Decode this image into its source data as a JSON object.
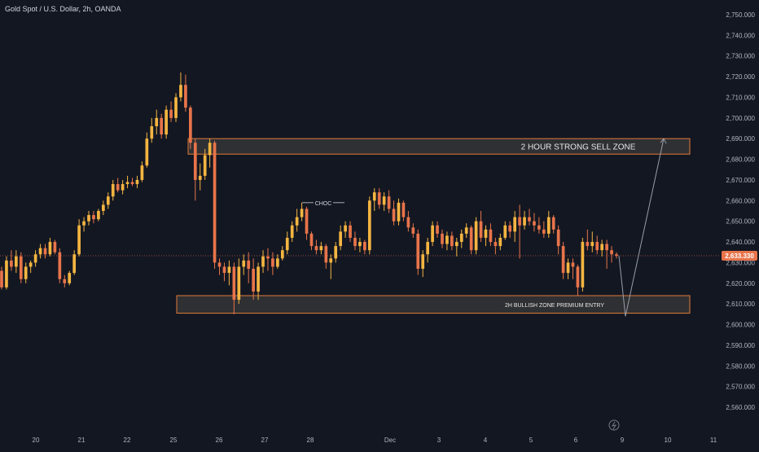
{
  "header": {
    "title": "Gold Spot / U.S. Dollar, 2h, OANDA"
  },
  "colors": {
    "background": "#131722",
    "up": "#f4b541",
    "down": "#e8744a",
    "zone_border": "#e07b39",
    "zone_fill": "#3a3a3a",
    "price_line": "#e8744a",
    "price_badge": "#e8744a",
    "projection": "#9a9ea8",
    "axis_text": "#b2b5be"
  },
  "chart_data": {
    "type": "candlestick",
    "symbol": "Gold Spot / U.S. Dollar",
    "interval": "2h",
    "source": "OANDA",
    "ylim": [
      2555,
      2755
    ],
    "y_ticks": [
      "2,560.000",
      "2,570.000",
      "2,580.000",
      "2,590.000",
      "2,600.000",
      "2,610.000",
      "2,620.000",
      "2,630.000",
      "2,640.000",
      "2,650.000",
      "2,660.000",
      "2,670.000",
      "2,680.000",
      "2,690.000",
      "2,700.000",
      "2,710.000",
      "2,720.000",
      "2,730.000",
      "2,740.000",
      "2,750.000"
    ],
    "x_ticks": [
      "20",
      "21",
      "22",
      "25",
      "26",
      "27",
      "28",
      "Dec",
      "3",
      "4",
      "5",
      "6",
      "9",
      "10",
      "11"
    ],
    "current_price": 2633.33,
    "current_price_label": "2,633.330",
    "candles": [
      [
        2626,
        2628,
        2617,
        2618
      ],
      [
        2618,
        2633,
        2617,
        2631
      ],
      [
        2631,
        2636,
        2626,
        2628
      ],
      [
        2628,
        2636,
        2625,
        2633
      ],
      [
        2633,
        2635,
        2620,
        2622
      ],
      [
        2622,
        2630,
        2620,
        2628
      ],
      [
        2628,
        2631,
        2625,
        2630
      ],
      [
        2630,
        2636,
        2628,
        2634
      ],
      [
        2634,
        2639,
        2632,
        2637
      ],
      [
        2637,
        2639,
        2632,
        2634
      ],
      [
        2634,
        2642,
        2633,
        2640
      ],
      [
        2640,
        2641,
        2634,
        2635
      ],
      [
        2635,
        2637,
        2620,
        2622
      ],
      [
        2622,
        2624,
        2618,
        2620
      ],
      [
        2620,
        2626,
        2619,
        2625
      ],
      [
        2625,
        2636,
        2624,
        2634
      ],
      [
        2634,
        2651,
        2633,
        2648
      ],
      [
        2648,
        2652,
        2645,
        2650
      ],
      [
        2650,
        2655,
        2648,
        2653
      ],
      [
        2653,
        2655,
        2649,
        2651
      ],
      [
        2651,
        2656,
        2650,
        2655
      ],
      [
        2655,
        2660,
        2653,
        2658
      ],
      [
        2658,
        2664,
        2656,
        2662
      ],
      [
        2662,
        2670,
        2660,
        2668
      ],
      [
        2668,
        2671,
        2664,
        2665
      ],
      [
        2665,
        2670,
        2663,
        2668
      ],
      [
        2668,
        2672,
        2666,
        2669
      ],
      [
        2669,
        2671,
        2667,
        2668
      ],
      [
        2668,
        2672,
        2666,
        2670
      ],
      [
        2670,
        2679,
        2669,
        2677
      ],
      [
        2677,
        2693,
        2676,
        2690
      ],
      [
        2690,
        2700,
        2688,
        2696
      ],
      [
        2696,
        2704,
        2692,
        2700
      ],
      [
        2700,
        2702,
        2690,
        2692
      ],
      [
        2692,
        2706,
        2690,
        2704
      ],
      [
        2704,
        2708,
        2698,
        2700
      ],
      [
        2700,
        2712,
        2698,
        2710
      ],
      [
        2710,
        2722,
        2708,
        2716
      ],
      [
        2716,
        2721,
        2703,
        2705
      ],
      [
        2705,
        2706,
        2685,
        2688
      ],
      [
        2688,
        2690,
        2660,
        2670
      ],
      [
        2670,
        2678,
        2665,
        2672
      ],
      [
        2672,
        2685,
        2670,
        2682
      ],
      [
        2682,
        2690,
        2676,
        2688
      ],
      [
        2688,
        2689,
        2627,
        2630
      ],
      [
        2630,
        2632,
        2624,
        2628
      ],
      [
        2628,
        2630,
        2621,
        2625
      ],
      [
        2625,
        2631,
        2619,
        2628
      ],
      [
        2628,
        2630,
        2605,
        2612
      ],
      [
        2612,
        2632,
        2610,
        2628
      ],
      [
        2628,
        2634,
        2624,
        2631
      ],
      [
        2631,
        2635,
        2620,
        2627
      ],
      [
        2627,
        2632,
        2612,
        2616
      ],
      [
        2616,
        2630,
        2612,
        2628
      ],
      [
        2628,
        2636,
        2625,
        2633
      ],
      [
        2633,
        2637,
        2626,
        2632
      ],
      [
        2632,
        2635,
        2624,
        2628
      ],
      [
        2628,
        2634,
        2627,
        2632
      ],
      [
        2632,
        2638,
        2631,
        2636
      ],
      [
        2636,
        2645,
        2634,
        2642
      ],
      [
        2642,
        2650,
        2640,
        2648
      ],
      [
        2648,
        2656,
        2645,
        2652
      ],
      [
        2652,
        2659,
        2650,
        2656
      ],
      [
        2656,
        2657,
        2641,
        2644
      ],
      [
        2644,
        2645,
        2636,
        2638
      ],
      [
        2638,
        2641,
        2634,
        2636
      ],
      [
        2636,
        2640,
        2634,
        2638
      ],
      [
        2638,
        2639,
        2627,
        2630
      ],
      [
        2630,
        2634,
        2622,
        2632
      ],
      [
        2632,
        2640,
        2630,
        2638
      ],
      [
        2638,
        2648,
        2636,
        2645
      ],
      [
        2645,
        2650,
        2642,
        2648
      ],
      [
        2648,
        2650,
        2640,
        2642
      ],
      [
        2642,
        2645,
        2636,
        2638
      ],
      [
        2638,
        2642,
        2635,
        2640
      ],
      [
        2640,
        2641,
        2634,
        2636
      ],
      [
        2636,
        2662,
        2634,
        2660
      ],
      [
        2660,
        2666,
        2655,
        2664
      ],
      [
        2664,
        2666,
        2656,
        2658
      ],
      [
        2658,
        2664,
        2655,
        2662
      ],
      [
        2662,
        2665,
        2654,
        2656
      ],
      [
        2656,
        2660,
        2648,
        2650
      ],
      [
        2650,
        2661,
        2648,
        2659
      ],
      [
        2659,
        2660,
        2650,
        2652
      ],
      [
        2652,
        2655,
        2645,
        2647
      ],
      [
        2647,
        2649,
        2642,
        2644
      ],
      [
        2644,
        2646,
        2624,
        2627
      ],
      [
        2627,
        2636,
        2623,
        2634
      ],
      [
        2634,
        2642,
        2630,
        2640
      ],
      [
        2640,
        2650,
        2638,
        2648
      ],
      [
        2648,
        2650,
        2642,
        2644
      ],
      [
        2644,
        2646,
        2637,
        2639
      ],
      [
        2639,
        2645,
        2636,
        2643
      ],
      [
        2643,
        2645,
        2636,
        2638
      ],
      [
        2638,
        2642,
        2633,
        2640
      ],
      [
        2640,
        2646,
        2637,
        2644
      ],
      [
        2644,
        2649,
        2642,
        2647
      ],
      [
        2647,
        2648,
        2634,
        2636
      ],
      [
        2636,
        2652,
        2634,
        2650
      ],
      [
        2650,
        2655,
        2640,
        2642
      ],
      [
        2642,
        2648,
        2638,
        2646
      ],
      [
        2646,
        2649,
        2638,
        2640
      ],
      [
        2640,
        2642,
        2634,
        2638
      ],
      [
        2638,
        2644,
        2636,
        2642
      ],
      [
        2642,
        2650,
        2641,
        2648
      ],
      [
        2648,
        2650,
        2642,
        2645
      ],
      [
        2645,
        2655,
        2640,
        2652
      ],
      [
        2652,
        2658,
        2632,
        2648
      ],
      [
        2648,
        2655,
        2646,
        2652
      ],
      [
        2652,
        2656,
        2648,
        2650
      ],
      [
        2650,
        2654,
        2645,
        2648
      ],
      [
        2648,
        2652,
        2644,
        2646
      ],
      [
        2646,
        2650,
        2642,
        2644
      ],
      [
        2644,
        2655,
        2642,
        2652
      ],
      [
        2652,
        2653,
        2644,
        2646
      ],
      [
        2646,
        2648,
        2634,
        2638
      ],
      [
        2638,
        2640,
        2622,
        2625
      ],
      [
        2625,
        2632,
        2622,
        2630
      ],
      [
        2630,
        2632,
        2622,
        2628
      ],
      [
        2628,
        2629,
        2614,
        2618
      ],
      [
        2618,
        2642,
        2616,
        2640
      ],
      [
        2640,
        2646,
        2636,
        2638
      ],
      [
        2638,
        2645,
        2635,
        2640
      ],
      [
        2640,
        2643,
        2634,
        2636
      ],
      [
        2636,
        2641,
        2633,
        2639
      ],
      [
        2639,
        2641,
        2627,
        2636
      ],
      [
        2636,
        2638,
        2630,
        2634
      ],
      [
        2634,
        2635,
        2632,
        2633.3
      ]
    ],
    "annotations": {
      "sell_zone": {
        "label": "2 HOUR STRONG SELL ZONE",
        "top": 2690,
        "bottom": 2682.5
      },
      "buy_zone": {
        "label": "2H BULLISH ZONE PREMIUM ENTRY",
        "top": 2614,
        "bottom": 2605.5
      },
      "choc": {
        "label": "CHOC",
        "price": 2659
      },
      "projection": [
        2633.33,
        2604,
        2690
      ]
    }
  }
}
